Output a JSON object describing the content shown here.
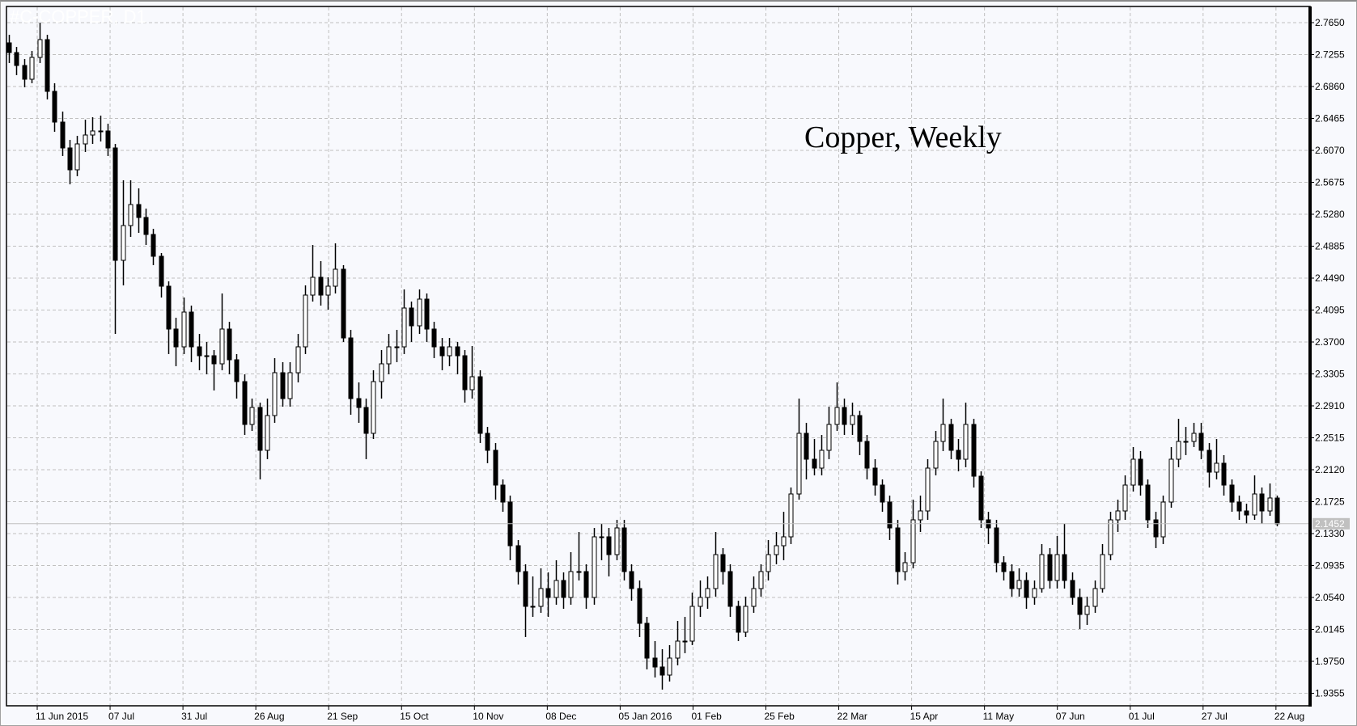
{
  "chart_data": {
    "type": "candlestick",
    "title": "Copper, Weekly",
    "watermark": "#C-COPPER, D1",
    "ylim": [
      1.9355,
      2.765
    ],
    "y_ticks": [
      "2.7650",
      "2.7255",
      "2.6860",
      "2.6465",
      "2.6070",
      "2.5675",
      "2.5280",
      "2.4885",
      "2.4490",
      "2.4095",
      "2.3700",
      "2.3305",
      "2.2910",
      "2.2515",
      "2.2120",
      "2.1725",
      "2.1330",
      "2.0935",
      "2.0540",
      "2.0145",
      "1.9750",
      "1.9355"
    ],
    "x_ticks": [
      "11 Jun 2015",
      "07 Jul",
      "31 Jul",
      "26 Aug",
      "21 Sep",
      "15 Oct",
      "10 Nov",
      "08 Dec",
      "05 Jan 2016",
      "01 Feb",
      "25 Feb",
      "22 Mar",
      "15 Apr",
      "11 May",
      "07 Jun",
      "01 Jul",
      "27 Jul",
      "22 Aug"
    ],
    "last_price": "2.1452",
    "grid": true,
    "colors": {
      "background": "#f8f9fd",
      "bull_body": "#ffffff",
      "bear_body": "#000000",
      "grid": "#c0c0c0",
      "last_price_label": "#c0c0c0"
    },
    "ohlc_columns": [
      "open",
      "high",
      "low",
      "close"
    ],
    "candles": [
      [
        2.74,
        2.75,
        2.715,
        2.728
      ],
      [
        2.728,
        2.735,
        2.7,
        2.712
      ],
      [
        2.712,
        2.72,
        2.685,
        2.695
      ],
      [
        2.695,
        2.73,
        2.69,
        2.722
      ],
      [
        2.722,
        2.765,
        2.715,
        2.744
      ],
      [
        2.744,
        2.75,
        2.67,
        2.68
      ],
      [
        2.68,
        2.69,
        2.63,
        2.642
      ],
      [
        2.642,
        2.655,
        2.6,
        2.61
      ],
      [
        2.61,
        2.62,
        2.565,
        2.583
      ],
      [
        2.583,
        2.625,
        2.575,
        2.615
      ],
      [
        2.615,
        2.645,
        2.605,
        2.626
      ],
      [
        2.626,
        2.648,
        2.615,
        2.631
      ],
      [
        2.631,
        2.65,
        2.618,
        2.631
      ],
      [
        2.631,
        2.64,
        2.6,
        2.61
      ],
      [
        2.61,
        2.615,
        2.38,
        2.471
      ],
      [
        2.471,
        2.57,
        2.44,
        2.514
      ],
      [
        2.514,
        2.57,
        2.5,
        2.54
      ],
      [
        2.54,
        2.56,
        2.505,
        2.524
      ],
      [
        2.524,
        2.535,
        2.49,
        2.503
      ],
      [
        2.503,
        2.51,
        2.465,
        2.476
      ],
      [
        2.476,
        2.48,
        2.425,
        2.439
      ],
      [
        2.439,
        2.445,
        2.355,
        2.386
      ],
      [
        2.386,
        2.4,
        2.34,
        2.364
      ],
      [
        2.364,
        2.425,
        2.355,
        2.407
      ],
      [
        2.407,
        2.415,
        2.345,
        2.364
      ],
      [
        2.364,
        2.38,
        2.335,
        2.353
      ],
      [
        2.353,
        2.37,
        2.33,
        2.353
      ],
      [
        2.353,
        2.36,
        2.31,
        2.343
      ],
      [
        2.343,
        2.43,
        2.335,
        2.386
      ],
      [
        2.386,
        2.395,
        2.33,
        2.348
      ],
      [
        2.348,
        2.355,
        2.3,
        2.321
      ],
      [
        2.321,
        2.33,
        2.255,
        2.268
      ],
      [
        2.268,
        2.3,
        2.26,
        2.289
      ],
      [
        2.289,
        2.295,
        2.2,
        2.236
      ],
      [
        2.236,
        2.3,
        2.225,
        2.279
      ],
      [
        2.279,
        2.35,
        2.27,
        2.332
      ],
      [
        2.332,
        2.345,
        2.29,
        2.3
      ],
      [
        2.3,
        2.345,
        2.29,
        2.332
      ],
      [
        2.332,
        2.38,
        2.32,
        2.364
      ],
      [
        2.364,
        2.44,
        2.355,
        2.428
      ],
      [
        2.428,
        2.49,
        2.42,
        2.45
      ],
      [
        2.45,
        2.47,
        2.415,
        2.428
      ],
      [
        2.428,
        2.45,
        2.41,
        2.439
      ],
      [
        2.439,
        2.492,
        2.43,
        2.46
      ],
      [
        2.46,
        2.465,
        2.37,
        2.375
      ],
      [
        2.375,
        2.385,
        2.28,
        2.3
      ],
      [
        2.3,
        2.32,
        2.27,
        2.289
      ],
      [
        2.289,
        2.3,
        2.225,
        2.257
      ],
      [
        2.257,
        2.335,
        2.25,
        2.321
      ],
      [
        2.321,
        2.36,
        2.3,
        2.343
      ],
      [
        2.343,
        2.38,
        2.33,
        2.364
      ],
      [
        2.364,
        2.385,
        2.345,
        2.364
      ],
      [
        2.364,
        2.435,
        2.355,
        2.412
      ],
      [
        2.412,
        2.42,
        2.37,
        2.39
      ],
      [
        2.39,
        2.435,
        2.38,
        2.423
      ],
      [
        2.423,
        2.43,
        2.37,
        2.386
      ],
      [
        2.386,
        2.395,
        2.35,
        2.364
      ],
      [
        2.364,
        2.375,
        2.335,
        2.353
      ],
      [
        2.353,
        2.375,
        2.34,
        2.364
      ],
      [
        2.364,
        2.37,
        2.33,
        2.353
      ],
      [
        2.353,
        2.36,
        2.295,
        2.311
      ],
      [
        2.311,
        2.365,
        2.3,
        2.327
      ],
      [
        2.327,
        2.335,
        2.245,
        2.257
      ],
      [
        2.257,
        2.265,
        2.22,
        2.236
      ],
      [
        2.236,
        2.245,
        2.175,
        2.193
      ],
      [
        2.193,
        2.2,
        2.16,
        2.172
      ],
      [
        2.172,
        2.18,
        2.1,
        2.118
      ],
      [
        2.118,
        2.125,
        2.07,
        2.086
      ],
      [
        2.086,
        2.095,
        2.005,
        2.043
      ],
      [
        2.043,
        2.08,
        2.03,
        2.043
      ],
      [
        2.043,
        2.09,
        2.035,
        2.065
      ],
      [
        2.065,
        2.085,
        2.03,
        2.054
      ],
      [
        2.054,
        2.1,
        2.045,
        2.075
      ],
      [
        2.075,
        2.085,
        2.04,
        2.054
      ],
      [
        2.054,
        2.11,
        2.045,
        2.086
      ],
      [
        2.086,
        2.135,
        2.075,
        2.086
      ],
      [
        2.086,
        2.095,
        2.04,
        2.054
      ],
      [
        2.054,
        2.14,
        2.045,
        2.129
      ],
      [
        2.129,
        2.145,
        2.1,
        2.129
      ],
      [
        2.129,
        2.14,
        2.08,
        2.107
      ],
      [
        2.107,
        2.15,
        2.1,
        2.14
      ],
      [
        2.14,
        2.15,
        2.075,
        2.086
      ],
      [
        2.086,
        2.095,
        2.05,
        2.065
      ],
      [
        2.065,
        2.075,
        2.005,
        2.022
      ],
      [
        2.022,
        2.03,
        1.965,
        1.979
      ],
      [
        1.979,
        2.0,
        1.955,
        1.968
      ],
      [
        1.968,
        1.99,
        1.94,
        1.958
      ],
      [
        1.958,
        1.995,
        1.95,
        1.979
      ],
      [
        1.979,
        2.025,
        1.97,
        2.0
      ],
      [
        2.0,
        2.03,
        1.985,
        2.0
      ],
      [
        2.0,
        2.06,
        1.995,
        2.043
      ],
      [
        2.043,
        2.075,
        2.03,
        2.054
      ],
      [
        2.054,
        2.08,
        2.04,
        2.065
      ],
      [
        2.065,
        2.135,
        2.055,
        2.107
      ],
      [
        2.107,
        2.115,
        2.07,
        2.086
      ],
      [
        2.086,
        2.095,
        2.03,
        2.043
      ],
      [
        2.043,
        2.05,
        2.0,
        2.011
      ],
      [
        2.011,
        2.055,
        2.005,
        2.043
      ],
      [
        2.043,
        2.08,
        2.035,
        2.065
      ],
      [
        2.065,
        2.095,
        2.055,
        2.086
      ],
      [
        2.086,
        2.125,
        2.075,
        2.107
      ],
      [
        2.107,
        2.135,
        2.095,
        2.118
      ],
      [
        2.118,
        2.16,
        2.1,
        2.129
      ],
      [
        2.129,
        2.19,
        2.12,
        2.182
      ],
      [
        2.182,
        2.3,
        2.175,
        2.257
      ],
      [
        2.257,
        2.27,
        2.2,
        2.225
      ],
      [
        2.225,
        2.25,
        2.205,
        2.214
      ],
      [
        2.214,
        2.255,
        2.205,
        2.236
      ],
      [
        2.236,
        2.29,
        2.225,
        2.268
      ],
      [
        2.268,
        2.32,
        2.26,
        2.289
      ],
      [
        2.289,
        2.3,
        2.255,
        2.268
      ],
      [
        2.268,
        2.295,
        2.255,
        2.279
      ],
      [
        2.279,
        2.285,
        2.23,
        2.247
      ],
      [
        2.247,
        2.255,
        2.2,
        2.214
      ],
      [
        2.214,
        2.225,
        2.18,
        2.193
      ],
      [
        2.193,
        2.2,
        2.16,
        2.172
      ],
      [
        2.172,
        2.18,
        2.125,
        2.14
      ],
      [
        2.14,
        2.15,
        2.07,
        2.086
      ],
      [
        2.086,
        2.11,
        2.075,
        2.097
      ],
      [
        2.097,
        2.175,
        2.09,
        2.15
      ],
      [
        2.15,
        2.18,
        2.135,
        2.161
      ],
      [
        2.161,
        2.225,
        2.15,
        2.214
      ],
      [
        2.214,
        2.26,
        2.205,
        2.247
      ],
      [
        2.247,
        2.3,
        2.235,
        2.268
      ],
      [
        2.268,
        2.275,
        2.225,
        2.236
      ],
      [
        2.236,
        2.25,
        2.21,
        2.225
      ],
      [
        2.225,
        2.295,
        2.215,
        2.268
      ],
      [
        2.268,
        2.275,
        2.19,
        2.204
      ],
      [
        2.204,
        2.21,
        2.14,
        2.15
      ],
      [
        2.15,
        2.16,
        2.12,
        2.14
      ],
      [
        2.14,
        2.15,
        2.085,
        2.097
      ],
      [
        2.097,
        2.105,
        2.075,
        2.086
      ],
      [
        2.086,
        2.095,
        2.055,
        2.065
      ],
      [
        2.065,
        2.09,
        2.055,
        2.075
      ],
      [
        2.075,
        2.085,
        2.04,
        2.054
      ],
      [
        2.054,
        2.075,
        2.045,
        2.065
      ],
      [
        2.065,
        2.12,
        2.06,
        2.107
      ],
      [
        2.107,
        2.115,
        2.065,
        2.075
      ],
      [
        2.075,
        2.13,
        2.065,
        2.107
      ],
      [
        2.107,
        2.145,
        2.065,
        2.075
      ],
      [
        2.075,
        2.085,
        2.045,
        2.054
      ],
      [
        2.054,
        2.065,
        2.015,
        2.033
      ],
      [
        2.033,
        2.055,
        2.02,
        2.043
      ],
      [
        2.043,
        2.075,
        2.035,
        2.065
      ],
      [
        2.065,
        2.12,
        2.06,
        2.107
      ],
      [
        2.107,
        2.16,
        2.1,
        2.15
      ],
      [
        2.15,
        2.175,
        2.135,
        2.161
      ],
      [
        2.161,
        2.205,
        2.15,
        2.193
      ],
      [
        2.193,
        2.24,
        2.185,
        2.225
      ],
      [
        2.225,
        2.235,
        2.18,
        2.193
      ],
      [
        2.193,
        2.2,
        2.14,
        2.15
      ],
      [
        2.15,
        2.16,
        2.115,
        2.129
      ],
      [
        2.129,
        2.18,
        2.12,
        2.172
      ],
      [
        2.172,
        2.24,
        2.165,
        2.225
      ],
      [
        2.225,
        2.275,
        2.215,
        2.247
      ],
      [
        2.247,
        2.265,
        2.23,
        2.247
      ],
      [
        2.247,
        2.27,
        2.24,
        2.257
      ],
      [
        2.257,
        2.27,
        2.225,
        2.236
      ],
      [
        2.236,
        2.245,
        2.19,
        2.209
      ],
      [
        2.209,
        2.25,
        2.2,
        2.22
      ],
      [
        2.22,
        2.23,
        2.18,
        2.193
      ],
      [
        2.193,
        2.2,
        2.16,
        2.172
      ],
      [
        2.172,
        2.18,
        2.15,
        2.161
      ],
      [
        2.161,
        2.17,
        2.145,
        2.156
      ],
      [
        2.156,
        2.205,
        2.15,
        2.182
      ],
      [
        2.182,
        2.19,
        2.145,
        2.161
      ],
      [
        2.161,
        2.195,
        2.155,
        2.177
      ],
      [
        2.177,
        2.18,
        2.142,
        2.145
      ]
    ]
  }
}
